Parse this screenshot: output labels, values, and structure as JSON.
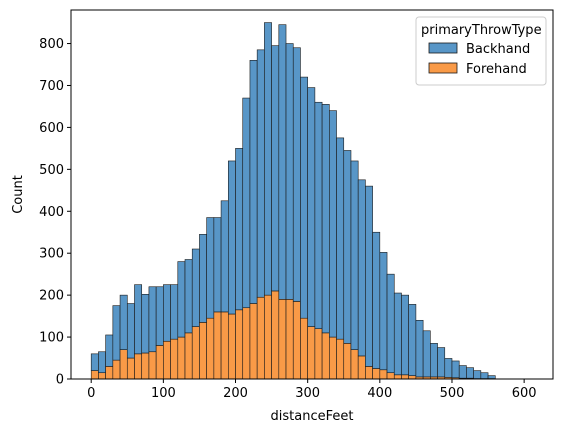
{
  "chart_data": {
    "type": "bar",
    "stacked": true,
    "xlabel": "distanceFeet",
    "ylabel": "Count",
    "xlim": [
      -28,
      640
    ],
    "ylim": [
      0,
      880
    ],
    "xticks": [
      0,
      100,
      200,
      300,
      400,
      500,
      600
    ],
    "yticks": [
      0,
      100,
      200,
      300,
      400,
      500,
      600,
      700,
      800
    ],
    "bin_start": 0,
    "bin_width": 10,
    "legend": {
      "title": "primaryThrowType",
      "placement": "top-right"
    },
    "series": [
      {
        "name": "Forehand",
        "color": "#f99a47",
        "values": [
          20,
          15,
          30,
          45,
          70,
          50,
          60,
          62,
          65,
          80,
          90,
          95,
          100,
          110,
          125,
          135,
          145,
          160,
          160,
          155,
          165,
          170,
          180,
          195,
          200,
          210,
          190,
          190,
          185,
          145,
          125,
          120,
          110,
          100,
          95,
          85,
          70,
          55,
          30,
          25,
          22,
          15,
          10,
          10,
          8,
          5,
          5,
          5,
          5,
          4,
          3,
          2,
          2,
          1,
          1,
          1
        ]
      },
      {
        "name": "Backhand",
        "color": "#5896c7",
        "values": [
          40,
          50,
          75,
          130,
          130,
          130,
          165,
          140,
          155,
          140,
          135,
          130,
          180,
          175,
          185,
          210,
          240,
          225,
          265,
          365,
          385,
          500,
          580,
          590,
          650,
          585,
          655,
          610,
          605,
          575,
          570,
          540,
          545,
          540,
          480,
          460,
          450,
          420,
          430,
          325,
          280,
          235,
          195,
          190,
          170,
          135,
          110,
          80,
          70,
          45,
          40,
          30,
          25,
          19,
          14,
          7
        ]
      }
    ]
  }
}
